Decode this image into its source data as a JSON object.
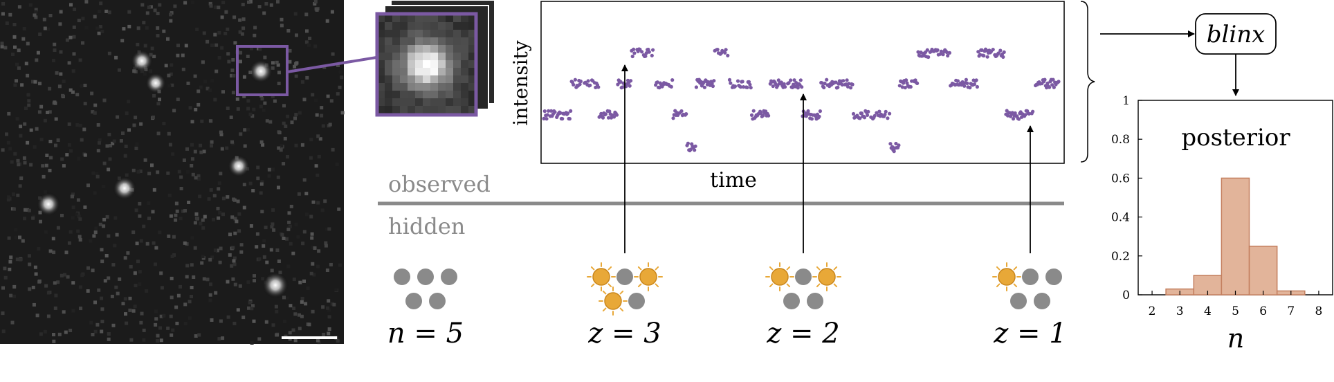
{
  "microscopy": {
    "scale_bar": "scale-bar",
    "crop_frame_color": "#7b59a3"
  },
  "trace_plot": {
    "ylabel": "intensity",
    "xlabel": "time",
    "point_color": "#7b59a3",
    "levels": [
      0,
      1,
      2,
      3
    ]
  },
  "labels": {
    "observed": "observed",
    "hidden": "hidden"
  },
  "states": [
    {
      "label": "n = 5",
      "lit": 0
    },
    {
      "label": "z = 3",
      "lit": 3
    },
    {
      "label": "z = 2",
      "lit": 2
    },
    {
      "label": "z = 1",
      "lit": 1
    }
  ],
  "blinx": {
    "label": "blinx"
  },
  "chart_data": {
    "type": "bar",
    "title": "posterior",
    "xlabel": "n",
    "ylabel": "",
    "categories": [
      "2",
      "3",
      "4",
      "5",
      "6",
      "7",
      "8"
    ],
    "values": [
      0.0,
      0.03,
      0.1,
      0.6,
      0.25,
      0.02,
      0.0
    ],
    "ylim": [
      0,
      1
    ],
    "yticks": [
      "0",
      "0.2",
      "0.4",
      "0.6",
      "0.8",
      "1"
    ],
    "bar_color": "#e2b49a",
    "bar_edge_color": "#c47f5f",
    "grid": false
  },
  "colors": {
    "on_emitter": "#e8a838",
    "off_emitter": "#8a8a8a",
    "divider": "#8a8a8a",
    "axis": "#000000"
  }
}
